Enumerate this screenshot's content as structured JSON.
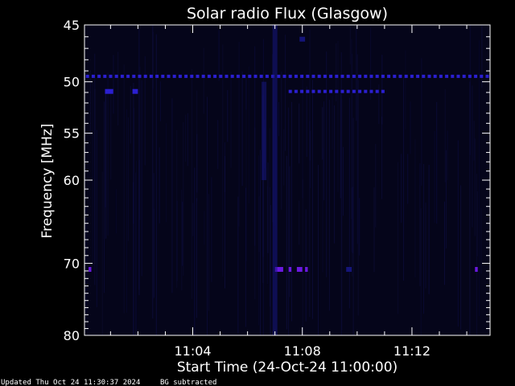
{
  "chart_data": {
    "type": "heatmap",
    "title": "Solar radio Flux (Glasgow)",
    "xlabel": "Start Time (24-Oct-24 11:00:00)",
    "ylabel": "Frequency [MHz]",
    "x_unit": "minutes after 11:00",
    "xlim": [
      0.05,
      14.85
    ],
    "ylim": [
      80,
      45
    ],
    "y_scale": "log",
    "x_ticks": [
      {
        "value": 4,
        "label": "11:04"
      },
      {
        "value": 8,
        "label": "11:08"
      },
      {
        "value": 12,
        "label": "11:12"
      }
    ],
    "y_ticks": [
      {
        "value": 45,
        "label": "45"
      },
      {
        "value": 50,
        "label": "50"
      },
      {
        "value": 55,
        "label": "55"
      },
      {
        "value": 60,
        "label": "60"
      },
      {
        "value": 70,
        "label": "70"
      },
      {
        "value": 80,
        "label": "80"
      }
    ],
    "background_color": "#05051a",
    "signal_color": "#2b1fd0",
    "strong_signal_color": "#6a18e0",
    "features": [
      {
        "kind": "band",
        "freq": 49.5,
        "x_start": 0.1,
        "x_end": 14.8,
        "intensity": "medium"
      },
      {
        "kind": "band",
        "freq": 50.9,
        "x_start": 0.8,
        "x_end": 1.1,
        "intensity": "medium"
      },
      {
        "kind": "band",
        "freq": 50.9,
        "x_start": 1.8,
        "x_end": 2.0,
        "intensity": "medium"
      },
      {
        "kind": "band",
        "freq": 50.9,
        "x_start": 7.5,
        "x_end": 11.0,
        "intensity": "medium"
      },
      {
        "kind": "band",
        "freq": 46.2,
        "x_start": 7.9,
        "x_end": 8.1,
        "intensity": "weak"
      },
      {
        "kind": "burst",
        "freq": 70.8,
        "x_start": 0.2,
        "x_end": 0.3,
        "intensity": "strong"
      },
      {
        "kind": "burst",
        "freq": 70.8,
        "x_start": 7.0,
        "x_end": 7.3,
        "intensity": "strong"
      },
      {
        "kind": "burst",
        "freq": 70.8,
        "x_start": 7.5,
        "x_end": 7.6,
        "intensity": "strong"
      },
      {
        "kind": "burst",
        "freq": 70.8,
        "x_start": 7.8,
        "x_end": 8.0,
        "intensity": "strong"
      },
      {
        "kind": "burst",
        "freq": 70.8,
        "x_start": 8.1,
        "x_end": 8.2,
        "intensity": "strong"
      },
      {
        "kind": "burst",
        "freq": 70.8,
        "x_start": 9.6,
        "x_end": 9.8,
        "intensity": "weak"
      },
      {
        "kind": "burst",
        "freq": 70.8,
        "x_start": 14.3,
        "x_end": 14.4,
        "intensity": "strong"
      },
      {
        "kind": "column",
        "x": 7.0,
        "freq_start": 45,
        "freq_end": 80,
        "intensity": "weak"
      },
      {
        "kind": "column",
        "x": 6.6,
        "freq_start": 50,
        "freq_end": 60,
        "intensity": "weak"
      }
    ]
  },
  "footer": {
    "updated": "Updated Thu Oct 24 11:30:37 2024",
    "note": "BG subtracted"
  }
}
